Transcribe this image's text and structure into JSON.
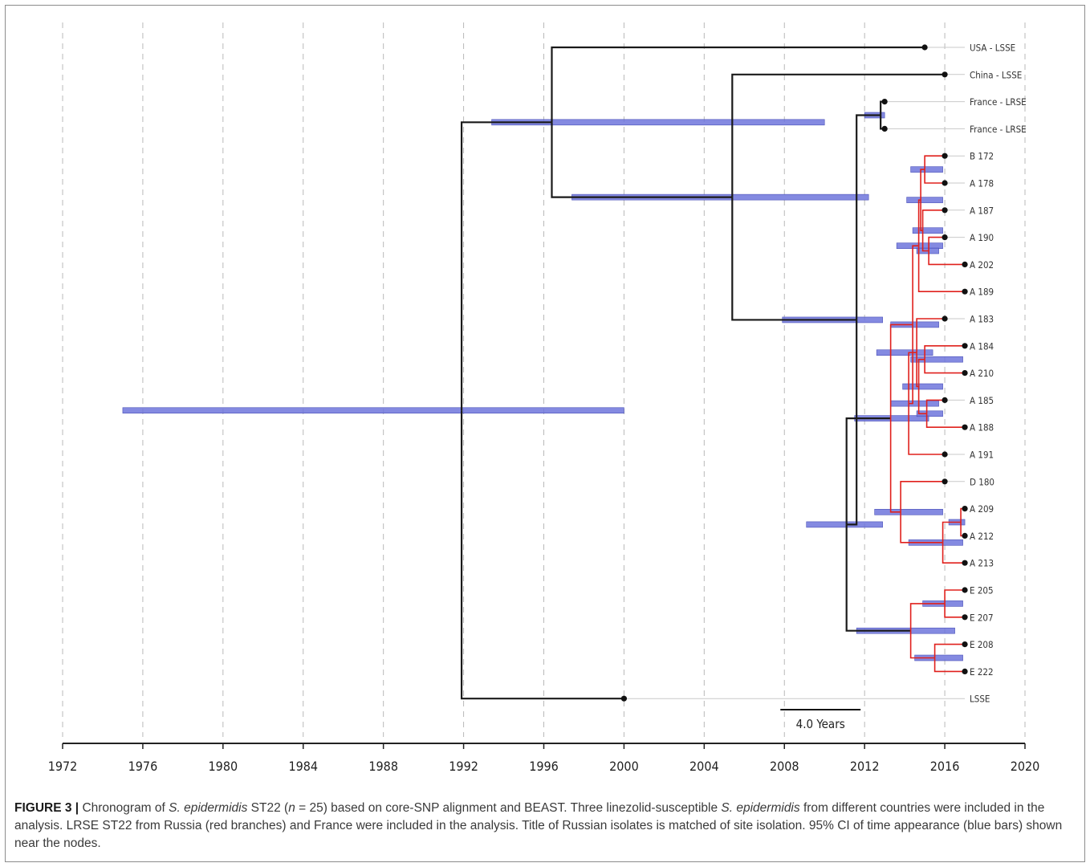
{
  "figure": {
    "label": "FIGURE 3 |",
    "caption_parts": [
      {
        "text": " Chronogram of ",
        "italic": false
      },
      {
        "text": "S. epidermidis",
        "italic": true
      },
      {
        "text": " ST22 (",
        "italic": false
      },
      {
        "text": "n",
        "italic": true
      },
      {
        "text": " = 25) based on core-SNP alignment and BEAST. Three linezolid-susceptible ",
        "italic": false
      },
      {
        "text": "S. epidermidis",
        "italic": true
      },
      {
        "text": " from different countries were included in the analysis. LRSE ST22 from Russia (red branches) and France were included in the analysis. Title of Russian isolates is matched of site isolation. 95% CI of time appearance (blue bars) shown near the nodes.",
        "italic": false
      }
    ]
  },
  "chart_data": {
    "type": "chronogram",
    "x_ticks": [
      1972,
      1976,
      1980,
      1984,
      1988,
      1992,
      1996,
      2000,
      2004,
      2008,
      2012,
      2016,
      2020
    ],
    "x_range": [
      1972,
      2020
    ],
    "grid": "vertical dashed",
    "scale_bar": {
      "label": "4.0 Years",
      "years": 4.0
    },
    "colors": {
      "russia_branch": "#e0201c",
      "other_branch": "#1a1a1a",
      "ci_bar": "#6f76dc",
      "grid": "#b9b9b9"
    },
    "tips": [
      {
        "label": "USA - LSSE",
        "year": 2015.0,
        "group": "other"
      },
      {
        "label": "China - LSSE",
        "year": 2016.0,
        "group": "other"
      },
      {
        "label": "France - LRSE",
        "year": 2013.0,
        "group": "other"
      },
      {
        "label": "France - LRSE",
        "year": 2013.0,
        "group": "other"
      },
      {
        "label": "B 172",
        "year": 2016.0,
        "group": "russia"
      },
      {
        "label": "A 178",
        "year": 2016.0,
        "group": "russia"
      },
      {
        "label": "A 187",
        "year": 2016.0,
        "group": "russia"
      },
      {
        "label": "A 190",
        "year": 2016.0,
        "group": "russia"
      },
      {
        "label": "A 202",
        "year": 2017.0,
        "group": "russia"
      },
      {
        "label": "A 189",
        "year": 2017.0,
        "group": "russia"
      },
      {
        "label": "A 183",
        "year": 2016.0,
        "group": "russia"
      },
      {
        "label": "A 184",
        "year": 2017.0,
        "group": "russia"
      },
      {
        "label": "A 210",
        "year": 2017.0,
        "group": "russia"
      },
      {
        "label": "A 185",
        "year": 2016.0,
        "group": "russia"
      },
      {
        "label": "A 188",
        "year": 2017.0,
        "group": "russia"
      },
      {
        "label": "A 191",
        "year": 2016.0,
        "group": "russia"
      },
      {
        "label": "D 180",
        "year": 2016.0,
        "group": "russia"
      },
      {
        "label": "A 209",
        "year": 2017.0,
        "group": "russia"
      },
      {
        "label": "A 212",
        "year": 2017.0,
        "group": "russia"
      },
      {
        "label": "A 213",
        "year": 2017.0,
        "group": "russia"
      },
      {
        "label": "E 205",
        "year": 2017.0,
        "group": "russia"
      },
      {
        "label": "E 207",
        "year": 2017.0,
        "group": "russia"
      },
      {
        "label": "E 208",
        "year": 2017.0,
        "group": "russia"
      },
      {
        "label": "E 222",
        "year": 2017.0,
        "group": "russia"
      },
      {
        "label": "LSSE",
        "year": 2000.0,
        "group": "other"
      }
    ],
    "internal_nodes": [
      {
        "id": "root",
        "year": 1991.9,
        "children": [
          "nLSSE",
          "tLSSE"
        ],
        "ci": [
          1975.0,
          2000.0
        ]
      },
      {
        "id": "nLSSE",
        "year": 1996.4,
        "children": [
          "tUSA",
          "nCHN"
        ],
        "ci": [
          1993.4,
          2010.0
        ]
      },
      {
        "id": "nCHN",
        "year": 2005.4,
        "children": [
          "tCHN",
          "nFR"
        ],
        "ci": [
          1997.4,
          2012.2
        ]
      },
      {
        "id": "nFR",
        "year": 2011.6,
        "children": [
          "nFRA",
          "nRU"
        ],
        "ci": [
          2007.9,
          2012.9
        ]
      },
      {
        "id": "nFRA",
        "year": 2012.8,
        "children": [
          "tFR1",
          "tFR2"
        ],
        "ci": [
          2012.0,
          2013.0
        ]
      },
      {
        "id": "nRU",
        "year": 2011.1,
        "children": [
          "nA",
          "nE"
        ],
        "ci": [
          2009.1,
          2012.9
        ]
      },
      {
        "id": "nA",
        "year": 2013.3,
        "children": [
          "nB",
          "nD"
        ],
        "ci": [
          2011.5,
          2015.2
        ]
      },
      {
        "id": "nB",
        "year": 2014.4,
        "children": [
          "nB1",
          "nB2"
        ],
        "ci": [
          2013.3,
          2015.7
        ]
      },
      {
        "id": "nB1",
        "year": 2014.7,
        "children": [
          "nB1a",
          "tA189"
        ],
        "ci": [
          2013.6,
          2015.9
        ]
      },
      {
        "id": "nB1a",
        "year": 2014.8,
        "children": [
          "nB172",
          "nA187"
        ],
        "ci": [
          2014.1,
          2015.9
        ]
      },
      {
        "id": "nB172",
        "year": 2015.0,
        "children": [
          "tB172",
          "tA178"
        ],
        "ci": [
          2014.3,
          2015.9
        ]
      },
      {
        "id": "nA187",
        "year": 2014.9,
        "children": [
          "tA187",
          "nA190"
        ],
        "ci": [
          2014.4,
          2015.9
        ]
      },
      {
        "id": "nA190",
        "year": 2015.2,
        "children": [
          "tA190",
          "tA202"
        ],
        "ci": [
          2014.6,
          2015.7
        ]
      },
      {
        "id": "nB2",
        "year": 2014.2,
        "children": [
          "nB2a",
          "tA191"
        ],
        "ci": [
          2013.3,
          2015.7
        ]
      },
      {
        "id": "nB2a",
        "year": 2014.6,
        "children": [
          "tA183",
          "nA184"
        ],
        "ci": [
          2012.6,
          2015.4
        ]
      },
      {
        "id": "nA184",
        "year": 2014.7,
        "children": [
          "nA184a",
          "nA185"
        ],
        "ci": [
          2013.9,
          2015.9
        ]
      },
      {
        "id": "nA184a",
        "year": 2015.0,
        "children": [
          "tA184",
          "tA210"
        ],
        "ci": [
          2014.3,
          2016.9
        ]
      },
      {
        "id": "nA185",
        "year": 2015.1,
        "children": [
          "tA185",
          "tA188"
        ],
        "ci": [
          2014.6,
          2015.9
        ]
      },
      {
        "id": "nD",
        "year": 2013.8,
        "children": [
          "tD180",
          "nA209"
        ],
        "ci": [
          2012.5,
          2015.9
        ]
      },
      {
        "id": "nA209",
        "year": 2015.9,
        "children": [
          "nA209a",
          "tA213"
        ],
        "ci": [
          2014.2,
          2016.9
        ]
      },
      {
        "id": "nA209a",
        "year": 2016.8,
        "children": [
          "tA209",
          "tA212"
        ],
        "ci": [
          2016.2,
          2017.0
        ]
      },
      {
        "id": "nE",
        "year": 2014.3,
        "children": [
          "nE1",
          "nE2"
        ],
        "ci": [
          2011.6,
          2016.5
        ]
      },
      {
        "id": "nE1",
        "year": 2016.0,
        "children": [
          "tE205",
          "tE207"
        ],
        "ci": [
          2014.9,
          2016.9
        ]
      },
      {
        "id": "nE2",
        "year": 2015.5,
        "children": [
          "tE208",
          "tE222"
        ],
        "ci": [
          2014.5,
          2016.9
        ]
      }
    ],
    "edges": [
      [
        "root",
        "nLSSE"
      ],
      [
        "root",
        "tLSSE"
      ],
      [
        "nLSSE",
        "tUSA"
      ],
      [
        "nLSSE",
        "nCHN"
      ],
      [
        "nCHN",
        "tCHN"
      ],
      [
        "nCHN",
        "nFR"
      ],
      [
        "nFR",
        "nFRA"
      ],
      [
        "nFR",
        "nRU"
      ],
      [
        "nFRA",
        "tFR1"
      ],
      [
        "nFRA",
        "tFR2"
      ],
      [
        "nRU",
        "nA"
      ],
      [
        "nRU",
        "nE"
      ]
    ]
  }
}
